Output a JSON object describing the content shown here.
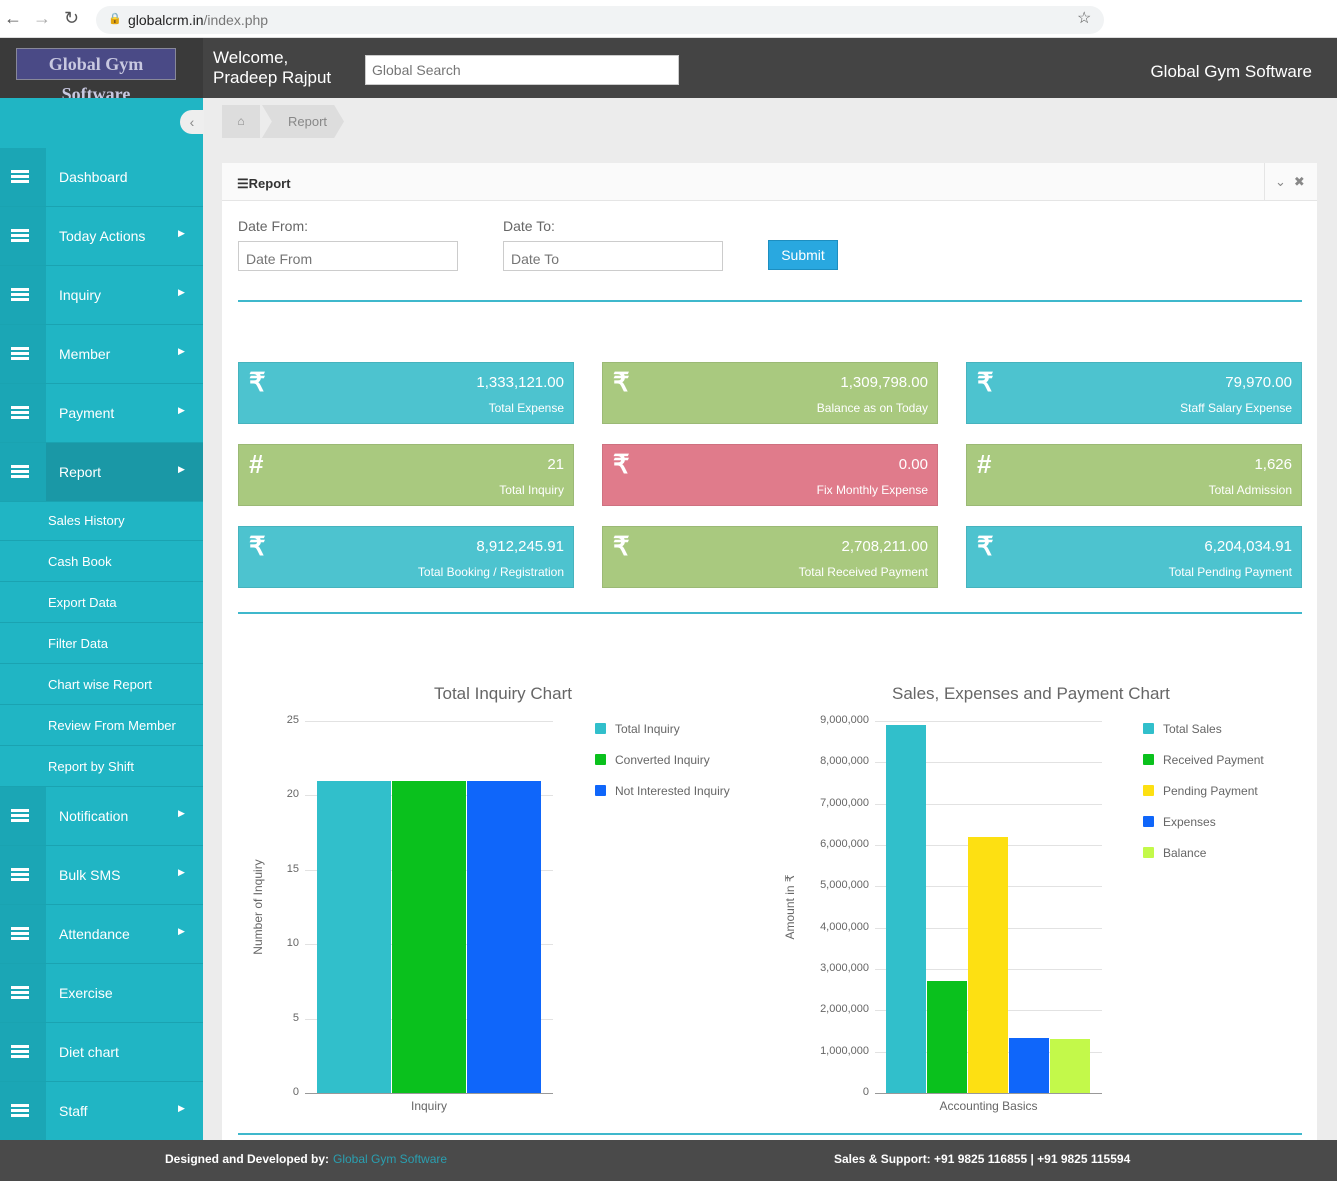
{
  "browser": {
    "url_host": "globalcrm.in",
    "url_path": "/index.php"
  },
  "header": {
    "logo": "Global Gym Software",
    "welcome_line1": "Welcome,",
    "welcome_line2": "Pradeep Rajput",
    "search_placeholder": "Global Search",
    "brand": "Global Gym Software"
  },
  "breadcrumb": {
    "current": "Report"
  },
  "sidebar": {
    "items": [
      {
        "label": "Dashboard",
        "arrow": false
      },
      {
        "label": "Today Actions",
        "arrow": true
      },
      {
        "label": "Inquiry",
        "arrow": true
      },
      {
        "label": "Member",
        "arrow": true
      },
      {
        "label": "Payment",
        "arrow": true
      },
      {
        "label": "Report",
        "arrow": true,
        "active": true
      }
    ],
    "report_sub": [
      "Sales History",
      "Cash Book",
      "Export Data",
      "Filter Data",
      "Chart wise Report",
      "Review From Member",
      "Report by Shift"
    ],
    "items_after": [
      {
        "label": "Notification",
        "arrow": true
      },
      {
        "label": "Bulk SMS",
        "arrow": true
      },
      {
        "label": "Attendance",
        "arrow": true
      },
      {
        "label": "Exercise",
        "arrow": false
      },
      {
        "label": "Diet chart",
        "arrow": false
      },
      {
        "label": "Staff",
        "arrow": true
      }
    ]
  },
  "panel": {
    "title": "Report",
    "date_from_label": "Date From:",
    "date_from_placeholder": "Date From",
    "date_to_label": "Date To:",
    "date_to_placeholder": "Date To",
    "submit": "Submit"
  },
  "cards": [
    {
      "icon": "₹",
      "value": "1,333,121.00",
      "label": "Total Expense",
      "color": "#4dc3cf"
    },
    {
      "icon": "₹",
      "value": "1,309,798.00",
      "label": "Balance as on Today",
      "color": "#a9c97f"
    },
    {
      "icon": "₹",
      "value": "79,970.00",
      "label": "Staff Salary Expense",
      "color": "#4dc3cf"
    },
    {
      "icon": "#",
      "value": "21",
      "label": "Total Inquiry",
      "color": "#a9c97f"
    },
    {
      "icon": "₹",
      "value": "0.00",
      "label": "Fix Monthly Expense",
      "color": "#e07b8b"
    },
    {
      "icon": "#",
      "value": "1,626",
      "label": "Total Admission",
      "color": "#a9c97f"
    },
    {
      "icon": "₹",
      "value": "8,912,245.91",
      "label": "Total Booking / Registration",
      "color": "#4dc3cf"
    },
    {
      "icon": "₹",
      "value": "2,708,211.00",
      "label": "Total Received Payment",
      "color": "#a9c97f"
    },
    {
      "icon": "₹",
      "value": "6,204,034.91",
      "label": "Total Pending Payment",
      "color": "#4dc3cf"
    }
  ],
  "chart_data": [
    {
      "type": "bar",
      "title": "Total Inquiry Chart",
      "xlabel": "",
      "ylabel": "Number of Inquiry",
      "categories": [
        "Inquiry"
      ],
      "ylim": [
        0,
        25
      ],
      "yticks": [
        0,
        5,
        10,
        15,
        20,
        25
      ],
      "grid": true,
      "legend": "right",
      "series": [
        {
          "name": "Total Inquiry",
          "values": [
            21
          ],
          "color": "#31bfcb"
        },
        {
          "name": "Converted Inquiry",
          "values": [
            21
          ],
          "color": "#0ac11d"
        },
        {
          "name": "Not Interested Inquiry",
          "values": [
            21
          ],
          "color": "#0f66fa"
        }
      ]
    },
    {
      "type": "bar",
      "title": "Sales, Expenses and Payment Chart",
      "xlabel": "",
      "ylabel": "Amount in ₹",
      "categories": [
        "Accounting Basics"
      ],
      "ylim": [
        0,
        9000000
      ],
      "yticks": [
        "0",
        "1,000,000",
        "2,000,000",
        "3,000,000",
        "4,000,000",
        "5,000,000",
        "6,000,000",
        "7,000,000",
        "8,000,000",
        "9,000,000"
      ],
      "grid": true,
      "legend": "right",
      "series": [
        {
          "name": "Total Sales",
          "values": [
            8912245.91
          ],
          "color": "#31bfcb"
        },
        {
          "name": "Received Payment",
          "values": [
            2708211
          ],
          "color": "#0ac11d"
        },
        {
          "name": "Pending Payment",
          "values": [
            6204034.91
          ],
          "color": "#fde012"
        },
        {
          "name": "Expenses",
          "values": [
            1333121
          ],
          "color": "#0f66fa"
        },
        {
          "name": "Balance",
          "values": [
            1309798
          ],
          "color": "#c3f94a"
        }
      ]
    }
  ],
  "footer": {
    "designed_by": "Designed and Developed by:",
    "company": "Global Gym Software",
    "support": "Sales & Support: +91 9825 116855 | +91 9825 115594"
  }
}
